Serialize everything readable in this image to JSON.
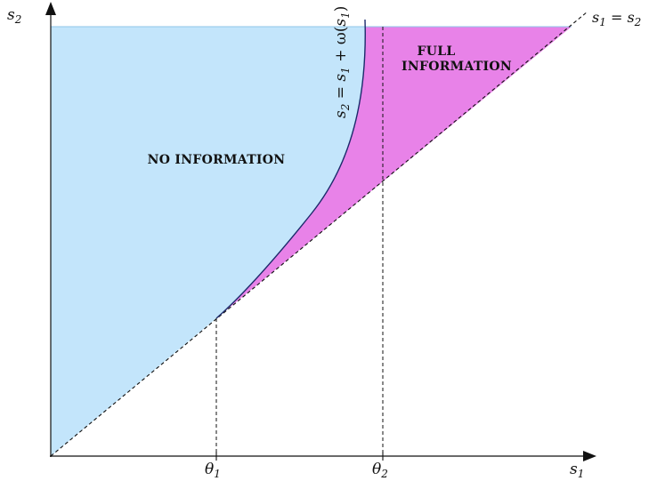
{
  "axes": {
    "x_label": {
      "base": "s",
      "sub": "1"
    },
    "y_label": {
      "base": "s",
      "sub": "2"
    }
  },
  "ticks": {
    "theta1": {
      "base": "θ",
      "sub": "1"
    },
    "theta2": {
      "base": "θ",
      "sub": "2"
    }
  },
  "diagonal_label": {
    "lhs": "s",
    "lhs_sub": "1",
    "eq": " = ",
    "rhs": "s",
    "rhs_sub": "2"
  },
  "curve_label": {
    "a": "s",
    "a_sub": "2",
    "b": " = ",
    "c": "s",
    "c_sub": "1",
    "d": " + ω(",
    "e": "s",
    "e_sub": "1",
    "f": ")"
  },
  "regions": {
    "no_information": "NO INFORMATION",
    "full_information_line1": "FULL",
    "full_information_line2": "INFORMATION"
  },
  "colors": {
    "no_information_fill": "#c3e5fb",
    "full_information_fill": "#e882e8",
    "lines": "#111111",
    "curve": "#1c2a6b"
  }
}
